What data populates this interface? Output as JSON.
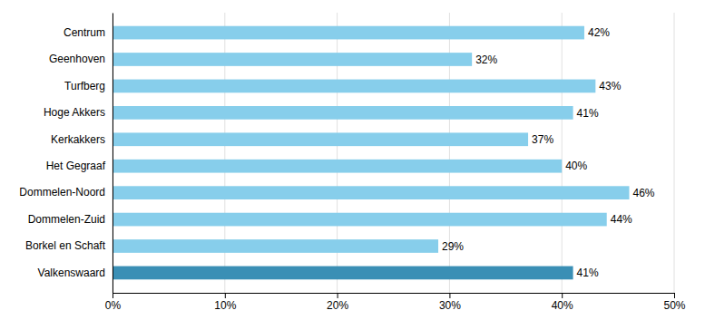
{
  "chart_data": {
    "type": "bar",
    "orientation": "horizontal",
    "categories": [
      "Centrum",
      "Geenhoven",
      "Turfberg",
      "Hoge Akkers",
      "Kerkakkers",
      "Het Gegraaf",
      "Dommelen-Noord",
      "Dommelen-Zuid",
      "Borkel en Schaft",
      "Valkenswaard"
    ],
    "values": [
      42,
      32,
      43,
      41,
      37,
      40,
      46,
      44,
      29,
      41
    ],
    "value_labels": [
      "42%",
      "32%",
      "43%",
      "41%",
      "37%",
      "40%",
      "46%",
      "44%",
      "29%",
      "41%"
    ],
    "data_labels": true,
    "colors": [
      "#87CEEB",
      "#87CEEB",
      "#87CEEB",
      "#87CEEB",
      "#87CEEB",
      "#87CEEB",
      "#87CEEB",
      "#87CEEB",
      "#87CEEB",
      "#3A8FB5"
    ],
    "xlim": [
      0,
      50
    ],
    "xticks": [
      {
        "value": 0,
        "label": "0%"
      },
      {
        "value": 10,
        "label": "10%"
      },
      {
        "value": 20,
        "label": "20%"
      },
      {
        "value": 30,
        "label": "30%"
      },
      {
        "value": 40,
        "label": "40%"
      },
      {
        "value": 50,
        "label": "50%"
      }
    ],
    "grid": true
  }
}
